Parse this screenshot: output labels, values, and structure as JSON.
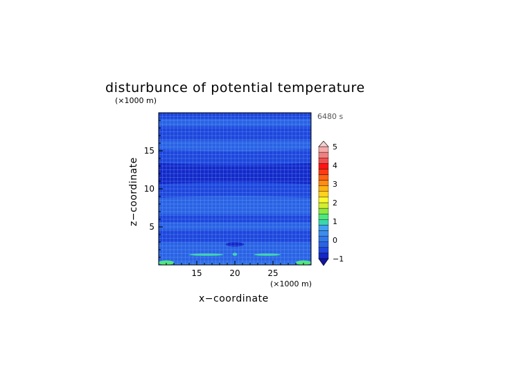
{
  "chart_data": {
    "type": "heatmap",
    "title": "disturbunce of potential temperature",
    "time_label": "6480 s",
    "xlabel": "x−coordinate",
    "ylabel": "z−coordinate",
    "x_unit": "(×1000 m)",
    "y_unit": "(×1000 m)",
    "xlim": [
      10,
      30
    ],
    "ylim": [
      0,
      20
    ],
    "xticks": [
      15,
      20,
      25
    ],
    "yticks": [
      5,
      10,
      15
    ],
    "grid": true,
    "colorbar": {
      "min": -1,
      "max": 5,
      "tick_labels": [
        "−1",
        "0",
        "1",
        "2",
        "3",
        "4",
        "5"
      ],
      "tick_values": [
        -1,
        0,
        1,
        2,
        3,
        4,
        5
      ],
      "colors": [
        "#1428c8",
        "#1e46dc",
        "#2a62e4",
        "#3278ea",
        "#3c8cee",
        "#42a0f2",
        "#3cd6ac",
        "#4ee87a",
        "#8ee840",
        "#d2ee30",
        "#fafa30",
        "#ffd21e",
        "#ffb414",
        "#ff8c14",
        "#ff6414",
        "#ff3a14",
        "#ff1414",
        "#f05050",
        "#f08080",
        "#f4aaaa"
      ],
      "level_step": 0.3
    },
    "bands": [
      {
        "z": [
          0.0,
          0.35
        ],
        "value": 0.0
      },
      {
        "z": [
          0.35,
          1.6
        ],
        "value": -0.2
      },
      {
        "z": [
          1.6,
          3.0
        ],
        "value": -0.2
      },
      {
        "z": [
          3.0,
          4.6
        ],
        "value": -0.5
      },
      {
        "z": [
          4.6,
          5.6
        ],
        "value": -0.2
      },
      {
        "z": [
          5.6,
          6.6
        ],
        "value": -0.5
      },
      {
        "z": [
          6.6,
          8.8
        ],
        "value": -0.2
      },
      {
        "z": [
          8.8,
          10.6
        ],
        "value": -0.5
      },
      {
        "z": [
          10.6,
          13.4
        ],
        "value": -0.8
      },
      {
        "z": [
          13.4,
          15.2
        ],
        "value": -0.5
      },
      {
        "z": [
          15.2,
          16.4
        ],
        "value": -0.2
      },
      {
        "z": [
          16.4,
          18.2
        ],
        "value": -0.5
      },
      {
        "z": [
          18.2,
          19.2
        ],
        "value": -0.2
      },
      {
        "z": [
          19.2,
          20.0
        ],
        "value": -0.5
      }
    ],
    "features": [
      {
        "x": [
          18.8,
          21.2
        ],
        "z": [
          2.4,
          3.0
        ],
        "value": -1.0
      },
      {
        "x": [
          19.7,
          20.3
        ],
        "z": [
          1.2,
          1.6
        ],
        "value": 1.0
      },
      {
        "x": [
          14.0,
          18.5
        ],
        "z": [
          1.2,
          1.5
        ],
        "value": 0.8
      },
      {
        "x": [
          22.5,
          26.0
        ],
        "z": [
          1.2,
          1.5
        ],
        "value": 0.8
      },
      {
        "x": [
          10.0,
          12.0
        ],
        "z": [
          0.0,
          0.6
        ],
        "value": 1.2
      },
      {
        "x": [
          28.0,
          30.0
        ],
        "z": [
          0.0,
          0.6
        ],
        "value": 1.2
      }
    ]
  }
}
